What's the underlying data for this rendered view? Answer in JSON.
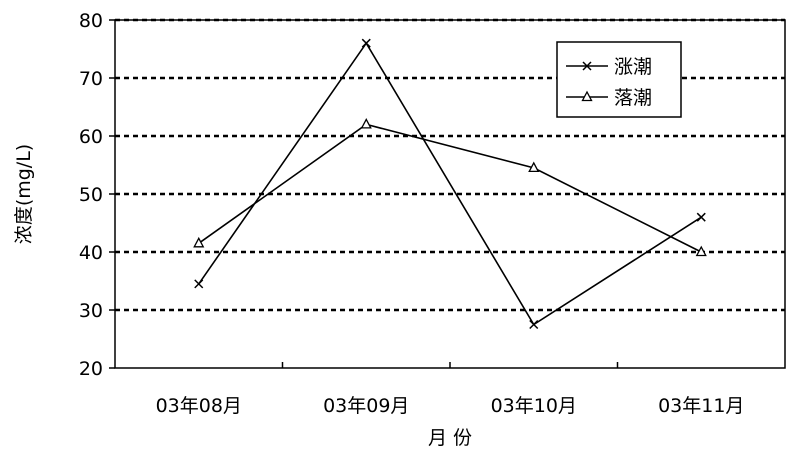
{
  "chart_data": {
    "type": "line",
    "categories": [
      "03年08月",
      "03年09月",
      "03年10月",
      "03年11月"
    ],
    "series": [
      {
        "name": "涨潮",
        "marker": "x",
        "values": [
          34.5,
          76,
          27.5,
          46
        ]
      },
      {
        "name": "落潮",
        "marker": "triangle",
        "values": [
          41.5,
          62,
          54.5,
          40
        ]
      }
    ],
    "ylim": [
      20,
      80
    ],
    "yticks": [
      20,
      30,
      40,
      50,
      60,
      70,
      80
    ],
    "ylabel": "浓度(mg/L)",
    "xlabel": "月 份",
    "grid": "horizontal dashed",
    "legend_position": "top-right",
    "colors": {
      "line": "#000000",
      "background": "#ffffff"
    }
  }
}
